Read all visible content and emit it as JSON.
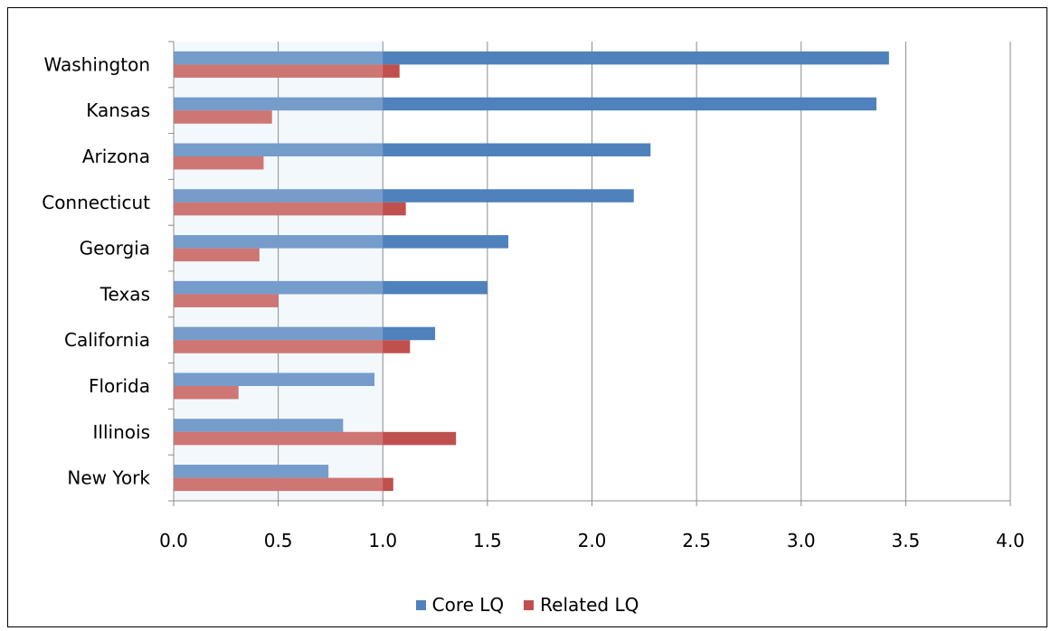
{
  "chart_data": {
    "type": "bar",
    "orientation": "horizontal",
    "categories": [
      "Washington",
      "Kansas",
      "Arizona",
      "Connecticut",
      "Georgia",
      "Texas",
      "California",
      "Florida",
      "Illinois",
      "New York"
    ],
    "series": [
      {
        "name": "Core LQ",
        "color": "#4f81bd",
        "values": [
          3.42,
          3.36,
          2.28,
          2.2,
          1.6,
          1.5,
          1.25,
          0.96,
          0.81,
          0.74
        ]
      },
      {
        "name": "Related LQ",
        "color": "#c0504d",
        "values": [
          1.08,
          0.47,
          0.43,
          1.11,
          0.41,
          0.5,
          1.13,
          0.31,
          1.35,
          1.05
        ]
      }
    ],
    "x_ticks": [
      "0.0",
      "0.5",
      "1.0",
      "1.5",
      "2.0",
      "2.5",
      "3.0",
      "3.5",
      "4.0"
    ],
    "xlim": [
      0,
      4.0
    ],
    "highlight_band": [
      0,
      1.0
    ],
    "grid": "vertical",
    "legend_position": "bottom",
    "title": "",
    "xlabel": "",
    "ylabel": ""
  }
}
